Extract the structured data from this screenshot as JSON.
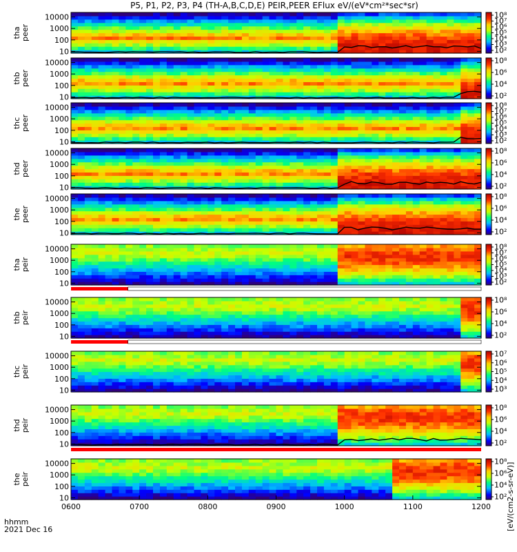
{
  "title": "P5, P1, P2, P3, P4 (TH-A,B,C,D,E) PEIR,PEER EFlux eV/(eV*cm²*sec*sr)",
  "time_axis": {
    "label": "hhmm",
    "date": "2021 Dec 16",
    "ticks": [
      "0600",
      "0700",
      "0800",
      "0900",
      "1000",
      "1100",
      "1200"
    ]
  },
  "colorbar_unit_label": "[eV/(cm2-s-sr-eV)]",
  "chart_data": [
    {
      "type": "heatmap",
      "probe": "tha",
      "species": "peer",
      "ylabel": [
        "tha",
        "peer"
      ],
      "yscale": "log",
      "ylim": [
        7,
        25000
      ],
      "yticks": [
        "10",
        "100",
        "1000",
        "10000"
      ],
      "colorbar": {
        "scale": "log",
        "ticks": [
          "10²",
          "10³",
          "10⁴",
          "10⁵",
          "10⁶",
          "10⁷",
          "10⁸"
        ]
      },
      "black_line": true,
      "transition_time": "0955"
    },
    {
      "type": "heatmap",
      "probe": "thb",
      "species": "peer",
      "ylabel": [
        "thb",
        "peer"
      ],
      "yscale": "log",
      "ylim": [
        7,
        25000
      ],
      "yticks": [
        "10",
        "100",
        "1000",
        "10000"
      ],
      "colorbar": {
        "scale": "log",
        "ticks": [
          "10²",
          "10⁴",
          "10⁶",
          "10⁸"
        ]
      },
      "black_line": true,
      "transition_time": "1140"
    },
    {
      "type": "heatmap",
      "probe": "thc",
      "species": "peer",
      "ylabel": [
        "thc",
        "peer"
      ],
      "yscale": "log",
      "ylim": [
        7,
        25000
      ],
      "yticks": [
        "10",
        "100",
        "1000",
        "10000"
      ],
      "colorbar": {
        "scale": "log",
        "ticks": [
          "10²",
          "10³",
          "10⁴",
          "10⁵",
          "10⁶",
          "10⁷",
          "10⁸"
        ]
      },
      "black_line": true,
      "transition_time": "1140"
    },
    {
      "type": "heatmap",
      "probe": "thd",
      "species": "peer",
      "ylabel": [
        "thd",
        "peer"
      ],
      "yscale": "log",
      "ylim": [
        7,
        25000
      ],
      "yticks": [
        "10",
        "100",
        "1000",
        "10000"
      ],
      "colorbar": {
        "scale": "log",
        "ticks": [
          "10²",
          "10⁴",
          "10⁶",
          "10⁸"
        ]
      },
      "black_line": true,
      "transition_time": "0955"
    },
    {
      "type": "heatmap",
      "probe": "the",
      "species": "peer",
      "ylabel": [
        "the",
        "peer"
      ],
      "yscale": "log",
      "ylim": [
        7,
        25000
      ],
      "yticks": [
        "10",
        "100",
        "1000",
        "10000"
      ],
      "colorbar": {
        "scale": "log",
        "ticks": [
          "10²",
          "10⁴",
          "10⁶",
          "10⁸"
        ]
      },
      "black_line": true,
      "transition_time": "0955"
    },
    {
      "type": "heatmap",
      "probe": "tha",
      "species": "peir",
      "ylabel": [
        "tha",
        "peir"
      ],
      "yscale": "log",
      "ylim": [
        7,
        25000
      ],
      "yticks": [
        "10",
        "100",
        "1000",
        "10000"
      ],
      "colorbar": {
        "scale": "log",
        "ticks": [
          "10²",
          "10³",
          "10⁴",
          "10⁵",
          "10⁶",
          "10⁷",
          "10⁸"
        ]
      },
      "black_line": false,
      "transition_time": "0955",
      "flag_bar_below": {
        "red_until": "0650"
      }
    },
    {
      "type": "heatmap",
      "probe": "thb",
      "species": "peir",
      "ylabel": [
        "thb",
        "peir"
      ],
      "yscale": "log",
      "ylim": [
        7,
        25000
      ],
      "yticks": [
        "10",
        "100",
        "1000",
        "10000"
      ],
      "colorbar": {
        "scale": "log",
        "ticks": [
          "10²",
          "10⁴",
          "10⁶",
          "10⁸"
        ]
      },
      "black_line": false,
      "transition_time": "1140",
      "flag_bar_below": {
        "red_until": "0650"
      }
    },
    {
      "type": "heatmap",
      "probe": "thc",
      "species": "peir",
      "ylabel": [
        "thc",
        "peir"
      ],
      "yscale": "log",
      "ylim": [
        7,
        25000
      ],
      "yticks": [
        "10",
        "100",
        "1000",
        "10000"
      ],
      "colorbar": {
        "scale": "log",
        "ticks": [
          "10³",
          "10⁴",
          "10⁵",
          "10⁶",
          "10⁷"
        ]
      },
      "black_line": false,
      "transition_time": "1140"
    },
    {
      "type": "heatmap",
      "probe": "thd",
      "species": "peir",
      "ylabel": [
        "thd",
        "peir"
      ],
      "yscale": "log",
      "ylim": [
        7,
        25000
      ],
      "yticks": [
        "10",
        "100",
        "1000",
        "10000"
      ],
      "colorbar": {
        "scale": "log",
        "ticks": [
          "10²",
          "10⁴",
          "10⁶",
          "10⁸"
        ]
      },
      "black_line": true,
      "transition_time": "0955",
      "flag_bar_below": {
        "red_until": "1200"
      }
    },
    {
      "type": "heatmap",
      "probe": "the",
      "species": "peir",
      "ylabel": [
        "the",
        "peir"
      ],
      "yscale": "log",
      "ylim": [
        7,
        25000
      ],
      "yticks": [
        "10",
        "100",
        "1000",
        "10000"
      ],
      "colorbar": {
        "scale": "log",
        "ticks": [
          "10²",
          "10⁴",
          "10⁶",
          "10⁸"
        ]
      },
      "black_line": false,
      "transition_time": "1040"
    }
  ]
}
